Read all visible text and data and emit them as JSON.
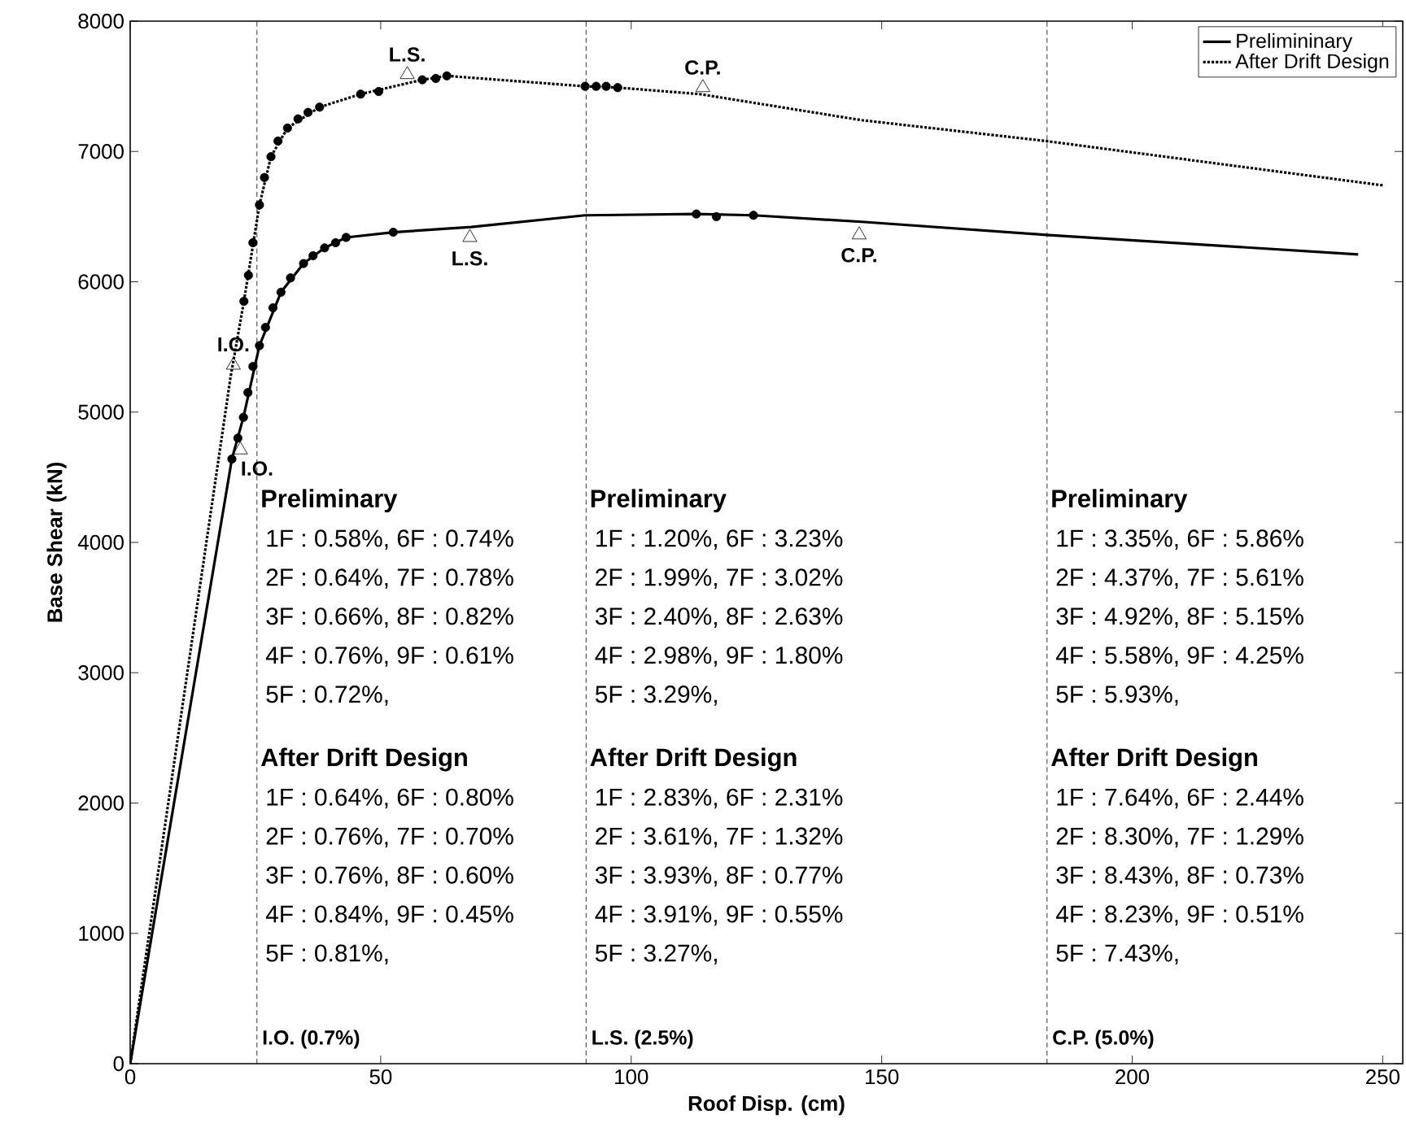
{
  "chart_data": {
    "type": "line",
    "xlabel": "Roof Disp. (cm)",
    "ylabel": "Base Shear (kN)",
    "xlim": [
      0,
      254
    ],
    "ylim": [
      0,
      8000
    ],
    "xticks": [
      0,
      50,
      100,
      150,
      200,
      250
    ],
    "yticks": [
      0,
      1000,
      2000,
      3000,
      4000,
      5000,
      6000,
      7000,
      8000
    ],
    "legend": "top right",
    "grid": false,
    "series": [
      {
        "name": "Prelimininary",
        "color": "#000000",
        "line_style": "solid",
        "x": [
          0,
          20.3,
          22.6,
          25.8,
          30.1,
          34.6,
          38.8,
          43.1,
          52.5,
          68.1,
          90.8,
          113,
          124.4,
          146,
          182.8,
          245.1
        ],
        "values": [
          0,
          4640,
          4960,
          5510,
          5920,
          6140,
          6260,
          6340,
          6380,
          6420,
          6510,
          6520,
          6510,
          6460,
          6360,
          6210
        ]
      },
      {
        "name": "After Drift Design",
        "color": "#000000",
        "line_style": "dotted",
        "x": [
          0,
          20,
          22.7,
          25.8,
          28.1,
          31.4,
          37.8,
          46,
          58.3,
          63.2,
          90.8,
          97.3,
          113.7,
          146,
          182.8,
          250
        ],
        "values": [
          0,
          5260,
          5850,
          6590,
          6960,
          7180,
          7340,
          7440,
          7550,
          7580,
          7500,
          7490,
          7440,
          7240,
          7080,
          6740
        ]
      },
      {
        "type": "scatter",
        "marker": "circle",
        "color": "#000000",
        "x": [
          20.3,
          21.5,
          22.6,
          23.5,
          24.5,
          25.8,
          27,
          28.5,
          30.1,
          32,
          34.6,
          36.5,
          38.8,
          41,
          43.1,
          52.5,
          113,
          117,
          124.4
        ],
        "values": [
          4640,
          4800,
          4960,
          5150,
          5350,
          5510,
          5650,
          5800,
          5920,
          6030,
          6140,
          6200,
          6260,
          6300,
          6340,
          6380,
          6520,
          6500,
          6510
        ]
      },
      {
        "type": "scatter",
        "marker": "circle",
        "color": "#000000",
        "x": [
          22.7,
          23.6,
          24.5,
          25.8,
          26.8,
          28.1,
          29.5,
          31.4,
          33.5,
          35.5,
          37.8,
          46,
          49.6,
          58.3,
          61,
          63.2,
          90.8,
          93,
          95,
          97.3
        ],
        "values": [
          5850,
          6050,
          6300,
          6590,
          6800,
          6960,
          7080,
          7180,
          7250,
          7300,
          7340,
          7440,
          7460,
          7550,
          7560,
          7580,
          7500,
          7500,
          7500,
          7490
        ]
      },
      {
        "type": "scatter",
        "marker": "triangle",
        "color": "#000000",
        "x": [
          20.6,
          55.3,
          114.3,
          22,
          67.8,
          145.5
        ],
        "values": [
          5360,
          7590,
          7490,
          4710,
          6340,
          6360
        ]
      }
    ],
    "ref_lines": [
      {
        "axis": "x",
        "value": 25.3,
        "label": "I.O. (0.7%)",
        "line_style": "dashed",
        "color": "#000000"
      },
      {
        "axis": "x",
        "value": 91,
        "label": "L.S. (2.5%)",
        "line_style": "dashed",
        "color": "#000000"
      },
      {
        "axis": "x",
        "value": 183,
        "label": "C.P. (5.0%)",
        "line_style": "dashed",
        "color": "#000000"
      }
    ],
    "annotations": [
      {
        "text": "I.O.",
        "x": 20.6,
        "y": 5362
      },
      {
        "text": "L.S.",
        "x": 55.3,
        "y": 7587
      },
      {
        "text": "C.P.",
        "x": 114.3,
        "y": 7487
      },
      {
        "text": "I.O.",
        "x": 22,
        "y": 4712
      },
      {
        "text": "L.S.",
        "x": 67.8,
        "y": 6337
      },
      {
        "text": "C.P.",
        "x": 145.5,
        "y": 6362
      },
      "Preliminary",
      "1F : 0.58%, 6F : 0.74%",
      "2F : 0.64%, 7F : 0.78%",
      "3F : 0.66%, 8F : 0.82%",
      "4F : 0.76%, 9F : 0.61%",
      "5F : 0.72%,",
      "After Drift Design",
      "1F : 0.64%, 6F : 0.80%",
      "2F : 0.76%, 7F : 0.70%",
      "3F : 0.76%, 8F : 0.60%",
      "4F : 0.84%, 9F : 0.45%",
      "5F : 0.81%,",
      "Preliminary",
      "1F : 1.20%, 6F : 3.23%",
      "2F : 1.99%, 7F : 3.02%",
      "3F : 2.40%, 8F : 2.63%",
      "4F : 2.98%, 9F : 1.80%",
      "5F : 3.29%,",
      "After Drift Design",
      "1F : 2.83%, 6F : 2.31%",
      "2F : 3.61%, 7F : 1.32%",
      "3F : 3.93%, 8F : 0.77%",
      "4F : 3.91%, 9F : 0.55%",
      "5F : 3.27%,",
      "Preliminary",
      "1F : 3.35%, 6F : 5.86%",
      "2F : 4.37%, 7F : 5.61%",
      "3F : 4.92%, 8F : 5.15%",
      "4F : 5.58%, 9F : 4.25%",
      "5F : 5.93%,",
      "After Drift Design",
      "1F : 7.64%, 6F : 2.44%",
      "2F : 8.30%, 7F : 1.29%",
      "3F : 8.43%, 8F : 0.73%",
      "4F : 8.23%, 9F : 0.51%",
      "5F : 7.43%,"
    ]
  }
}
